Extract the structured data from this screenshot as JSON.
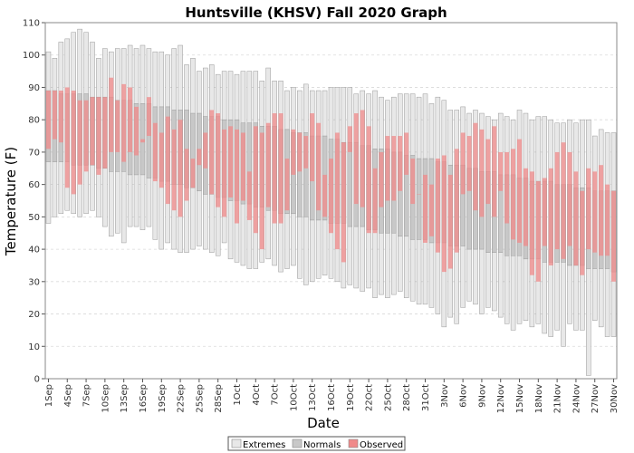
{
  "chart_data": {
    "type": "bar",
    "title": "Huntsville (KHSV) Fall 2020 Graph",
    "xlabel": "Date",
    "ylabel": "Temperature (F)",
    "ylim": [
      0,
      110
    ],
    "y_ticks": [
      0,
      10,
      20,
      30,
      40,
      50,
      60,
      70,
      80,
      90,
      100,
      110
    ],
    "grid": true,
    "legend_position": "bottom-center",
    "x_tick_labels": [
      "1Sep",
      "4Sep",
      "7Sep",
      "10Sep",
      "13Sep",
      "16Sep",
      "19Sep",
      "22Sep",
      "25Sep",
      "28Sep",
      "1Oct",
      "4Oct",
      "7Oct",
      "10Oct",
      "13Oct",
      "16Oct",
      "19Oct",
      "22Oct",
      "25Oct",
      "28Oct",
      "31Oct",
      "3Nov",
      "6Nov",
      "9Nov",
      "12Nov",
      "15Nov",
      "18Nov",
      "21Nov",
      "24Nov",
      "27Nov",
      "30Nov"
    ],
    "categories": [
      "1Sep",
      "2Sep",
      "3Sep",
      "4Sep",
      "5Sep",
      "6Sep",
      "7Sep",
      "8Sep",
      "9Sep",
      "10Sep",
      "11Sep",
      "12Sep",
      "13Sep",
      "14Sep",
      "15Sep",
      "16Sep",
      "17Sep",
      "18Sep",
      "19Sep",
      "20Sep",
      "21Sep",
      "22Sep",
      "23Sep",
      "24Sep",
      "25Sep",
      "26Sep",
      "27Sep",
      "28Sep",
      "29Sep",
      "30Sep",
      "1Oct",
      "2Oct",
      "3Oct",
      "4Oct",
      "5Oct",
      "6Oct",
      "7Oct",
      "8Oct",
      "9Oct",
      "10Oct",
      "11Oct",
      "12Oct",
      "13Oct",
      "14Oct",
      "15Oct",
      "16Oct",
      "17Oct",
      "18Oct",
      "19Oct",
      "20Oct",
      "21Oct",
      "22Oct",
      "23Oct",
      "24Oct",
      "25Oct",
      "26Oct",
      "27Oct",
      "28Oct",
      "29Oct",
      "30Oct",
      "31Oct",
      "1Nov",
      "2Nov",
      "3Nov",
      "4Nov",
      "5Nov",
      "6Nov",
      "7Nov",
      "8Nov",
      "9Nov",
      "10Nov",
      "11Nov",
      "12Nov",
      "13Nov",
      "14Nov",
      "15Nov",
      "16Nov",
      "17Nov",
      "18Nov",
      "19Nov",
      "20Nov",
      "21Nov",
      "22Nov",
      "23Nov",
      "24Nov",
      "25Nov",
      "26Nov",
      "27Nov",
      "28Nov",
      "29Nov",
      "30Nov"
    ],
    "extremes_high": [
      101,
      99,
      104,
      105,
      107,
      108,
      107,
      104,
      99,
      102,
      101,
      102,
      102,
      103,
      102,
      103,
      102,
      101,
      101,
      100,
      102,
      103,
      97,
      99,
      95,
      96,
      97,
      94,
      95,
      95,
      94,
      95,
      95,
      95,
      92,
      96,
      92,
      92,
      89,
      90,
      89,
      91,
      89,
      89,
      89,
      90,
      90,
      90,
      90,
      88,
      89,
      88,
      89,
      87,
      86,
      87,
      88,
      88,
      88,
      87,
      88,
      85,
      87,
      86,
      83,
      83,
      84,
      82,
      83,
      82,
      81,
      80,
      82,
      81,
      80,
      83,
      82,
      80,
      81,
      81,
      80,
      79,
      79,
      80,
      79,
      80,
      80,
      75,
      77,
      76,
      76
    ],
    "extremes_low": [
      48,
      50,
      51,
      52,
      51,
      50,
      51,
      52,
      50,
      47,
      44,
      45,
      42,
      47,
      47,
      46,
      47,
      43,
      40,
      42,
      40,
      39,
      39,
      40,
      41,
      40,
      39,
      38,
      42,
      37,
      36,
      35,
      34,
      34,
      36,
      37,
      35,
      33,
      34,
      35,
      31,
      29,
      30,
      31,
      32,
      31,
      30,
      28,
      29,
      28,
      27,
      28,
      25,
      26,
      25,
      26,
      27,
      25,
      24,
      23,
      23,
      22,
      20,
      16,
      19,
      17,
      22,
      24,
      23,
      20,
      22,
      21,
      19,
      17,
      15,
      17,
      18,
      16,
      17,
      14,
      13,
      15,
      10,
      17,
      15,
      15,
      1,
      18,
      16,
      13,
      13
    ],
    "normals_high": [
      89,
      89,
      88,
      88,
      88,
      88,
      88,
      87,
      87,
      87,
      87,
      86,
      86,
      86,
      85,
      85,
      85,
      84,
      84,
      84,
      83,
      83,
      83,
      82,
      82,
      81,
      81,
      81,
      80,
      80,
      80,
      79,
      79,
      79,
      78,
      78,
      78,
      77,
      77,
      76,
      76,
      76,
      75,
      75,
      75,
      74,
      74,
      73,
      73,
      73,
      72,
      72,
      71,
      71,
      71,
      70,
      70,
      69,
      69,
      68,
      68,
      68,
      67,
      67,
      66,
      66,
      66,
      65,
      65,
      64,
      64,
      64,
      63,
      63,
      63,
      62,
      62,
      61,
      61,
      61,
      61,
      60,
      60,
      60,
      59,
      59,
      59,
      58,
      58,
      58,
      58
    ],
    "normals_low": [
      67,
      67,
      67,
      67,
      66,
      66,
      66,
      66,
      65,
      65,
      64,
      64,
      64,
      63,
      63,
      63,
      62,
      62,
      61,
      61,
      60,
      60,
      59,
      59,
      58,
      57,
      57,
      56,
      56,
      55,
      55,
      54,
      54,
      53,
      53,
      52,
      52,
      51,
      51,
      51,
      50,
      50,
      49,
      49,
      49,
      48,
      48,
      48,
      47,
      47,
      47,
      46,
      46,
      45,
      45,
      45,
      44,
      44,
      43,
      43,
      43,
      42,
      42,
      42,
      41,
      41,
      41,
      40,
      40,
      40,
      39,
      39,
      39,
      38,
      38,
      38,
      37,
      37,
      37,
      36,
      36,
      36,
      36,
      35,
      35,
      35,
      34,
      34,
      34,
      34,
      33
    ],
    "observed_high": [
      89,
      89,
      89,
      90,
      89,
      86,
      86,
      87,
      87,
      87,
      93,
      86,
      91,
      90,
      84,
      74,
      87,
      79,
      76,
      81,
      77,
      80,
      71,
      68,
      71,
      76,
      83,
      82,
      77,
      78,
      77,
      76,
      64,
      78,
      76,
      79,
      82,
      82,
      68,
      77,
      76,
      75,
      82,
      79,
      63,
      68,
      76,
      73,
      78,
      82,
      83,
      78,
      65,
      70,
      75,
      75,
      75,
      76,
      68,
      57,
      63,
      60,
      68,
      69,
      63,
      71,
      76,
      75,
      79,
      77,
      74,
      78,
      70,
      70,
      71,
      74,
      65,
      64,
      61,
      62,
      65,
      70,
      73,
      70,
      64,
      58,
      65,
      64,
      66,
      60,
      58
    ],
    "observed_low": [
      71,
      74,
      73,
      59,
      57,
      60,
      64,
      66,
      63,
      65,
      70,
      70,
      67,
      70,
      69,
      73,
      75,
      61,
      59,
      54,
      52,
      50,
      55,
      59,
      66,
      65,
      57,
      53,
      50,
      56,
      48,
      55,
      49,
      45,
      40,
      53,
      48,
      48,
      52,
      63,
      64,
      65,
      61,
      52,
      50,
      45,
      40,
      36,
      70,
      54,
      53,
      45,
      45,
      53,
      55,
      55,
      58,
      63,
      54,
      62,
      42,
      44,
      39,
      33,
      34,
      39,
      57,
      58,
      52,
      50,
      54,
      50,
      58,
      48,
      43,
      42,
      41,
      32,
      30,
      41,
      35,
      40,
      37,
      41,
      35,
      32,
      40,
      39,
      38,
      38,
      30
    ],
    "series": [
      {
        "name": "Extremes",
        "color": "#e8e8e8"
      },
      {
        "name": "Normals",
        "color": "#c8c8c8"
      },
      {
        "name": "Observed",
        "color": "#f08a8a"
      }
    ]
  }
}
